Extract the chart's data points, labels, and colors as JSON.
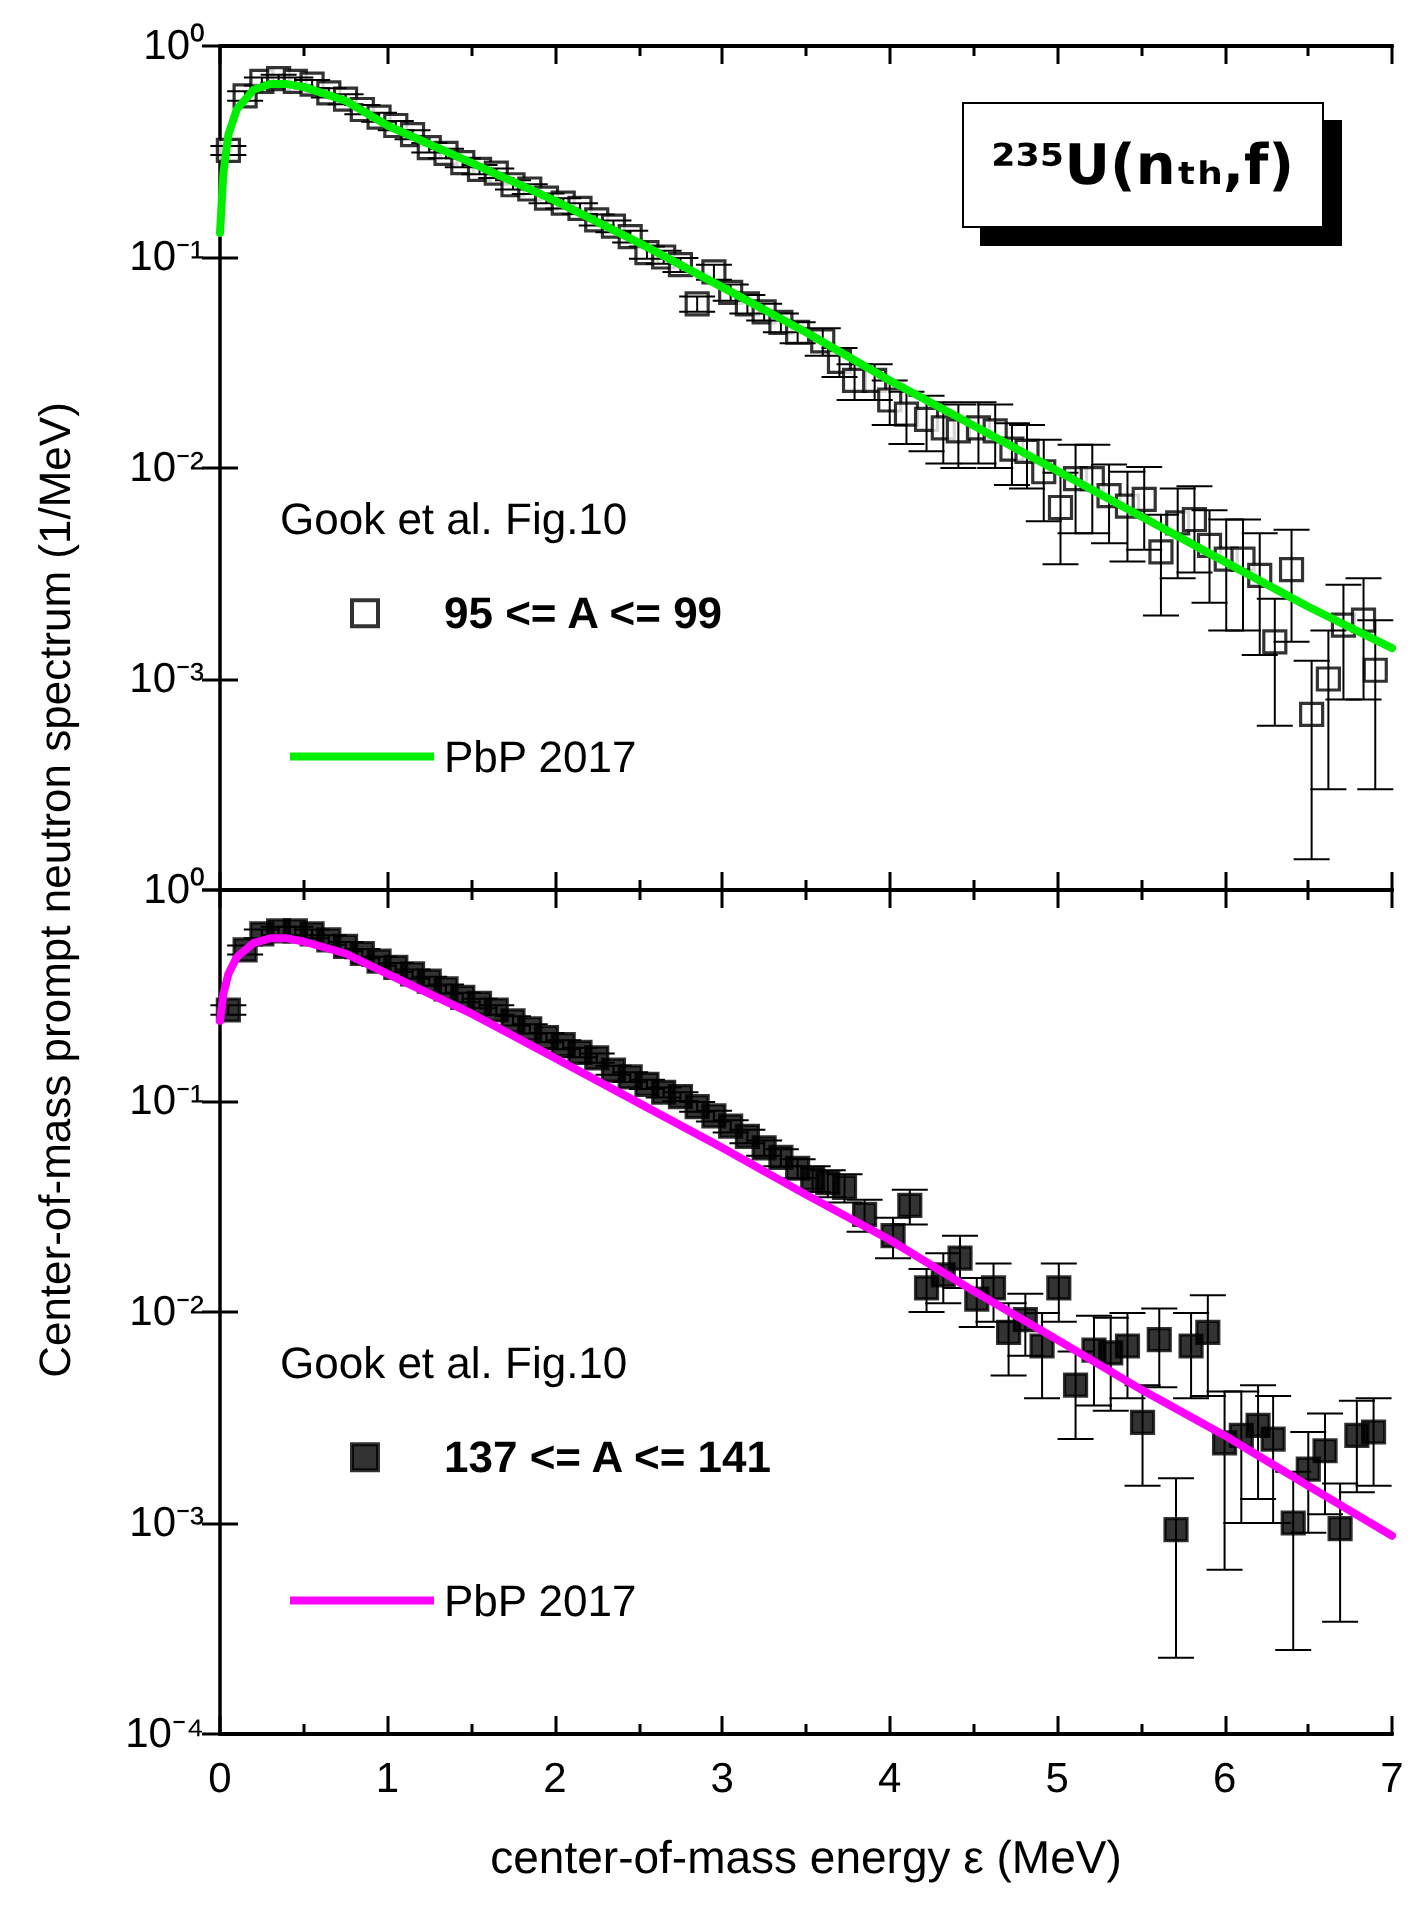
{
  "chart_data": [
    {
      "type": "scatter",
      "log": "y",
      "ylabel": "Center-of-mass prompt neutron spectrum (1/MeV)",
      "legend_title": "Gook et al. Fig.10",
      "legend": "left",
      "tick_labels": "y",
      "annotations": [
        "²³⁵U(nₜₕ,f)"
      ],
      "xlim": [
        0,
        7
      ],
      "xticks": [
        0,
        1,
        2,
        3,
        4,
        5,
        6,
        7
      ],
      "ylim": [
        0.0001,
        1
      ],
      "yticks": [
        {
          "value": 0.0001,
          "label": null
        },
        {
          "value": 0.001,
          "label": "10⁻³"
        },
        {
          "value": 0.01,
          "label": "10⁻²"
        },
        {
          "value": 0.1,
          "label": "10⁻¹"
        },
        {
          "value": 1,
          "label": "10⁰"
        }
      ],
      "series": [
        {
          "name": "95 <= A <= 99",
          "color": "#ffffff",
          "marker": "square",
          "x": [
            0.05,
            0.15,
            0.25,
            0.35,
            0.45,
            0.55,
            0.65,
            0.75,
            0.85,
            0.95,
            1.05,
            1.15,
            1.25,
            1.35,
            1.45,
            1.55,
            1.65,
            1.75,
            1.85,
            1.95,
            2.05,
            2.15,
            2.25,
            2.35,
            2.45,
            2.55,
            2.65,
            2.75,
            2.85,
            2.95,
            3.05,
            3.15,
            3.25,
            3.35,
            3.45,
            3.6,
            3.7,
            3.79,
            3.91,
            4.0,
            4.1,
            4.22,
            4.32,
            4.41,
            4.53,
            4.63,
            4.73,
            4.82,
            4.92,
            5.02,
            5.11,
            5.21,
            5.31,
            5.42,
            5.52,
            5.62,
            5.72,
            5.82,
            5.91,
            6.01,
            6.11,
            6.21,
            6.3,
            6.4,
            6.52,
            6.62,
            6.71,
            6.83,
            6.9
          ],
          "values": [
            0.32,
            0.58,
            0.68,
            0.7,
            0.68,
            0.66,
            0.6,
            0.56,
            0.5,
            0.46,
            0.42,
            0.38,
            0.33,
            0.31,
            0.28,
            0.26,
            0.25,
            0.22,
            0.21,
            0.19,
            0.18,
            0.17,
            0.15,
            0.14,
            0.125,
            0.105,
            0.1,
            0.092,
            0.06,
            0.085,
            0.068,
            0.06,
            0.055,
            0.049,
            0.044,
            0.04,
            0.032,
            0.026,
            0.026,
            0.021,
            0.018,
            0.017,
            0.0155,
            0.015,
            0.0155,
            0.015,
            0.0123,
            0.012,
            0.0096,
            0.0065,
            0.0089,
            0.0089,
            0.0074,
            0.0066,
            0.0071,
            0.004,
            0.0055,
            0.0057,
            0.0043,
            0.0037,
            0.0037,
            0.0031,
            0.0015,
            0.0033,
            0.00068,
            0.001,
            0.0018,
            0.0019,
            0.0011
          ],
          "errors": [
            0.016,
            0.03,
            0.03,
            0.03,
            0.03,
            0.03,
            0.03,
            0.03,
            0.025,
            0.023,
            0.021,
            0.019,
            0.017,
            0.016,
            0.014,
            0.013,
            0.013,
            0.011,
            0.011,
            0.01,
            0.01,
            0.01,
            0.009,
            0.009,
            0.008,
            0.007,
            0.007,
            0.007,
            0.005,
            0.007,
            0.006,
            0.006,
            0.005,
            0.005,
            0.005,
            0.006,
            0.005,
            0.005,
            0.005,
            0.005,
            0.005,
            0.005,
            0.005,
            0.005,
            0.005,
            0.005,
            0.004,
            0.004,
            0.004,
            0.003,
            0.004,
            0.004,
            0.003,
            0.003,
            0.003,
            0.002,
            0.0025,
            0.0025,
            0.002,
            0.002,
            0.002,
            0.0018,
            0.0009,
            0.0018,
            0.00054,
            0.0007,
            0.001,
            0.0011,
            0.0008
          ]
        },
        {
          "name": "PbP 2017",
          "type": "line",
          "color": "#00ee00",
          "line_style": "solid",
          "x": [
            0,
            0.02,
            0.05,
            0.1,
            0.2,
            0.3,
            0.4,
            0.5,
            0.75,
            1,
            1.5,
            2,
            2.5,
            3,
            3.5,
            4,
            4.5,
            5,
            5.5,
            6,
            6.5,
            7
          ],
          "values": [
            0.13,
            0.25,
            0.38,
            0.5,
            0.62,
            0.66,
            0.66,
            0.64,
            0.55,
            0.42,
            0.28,
            0.185,
            0.117,
            0.072,
            0.044,
            0.026,
            0.0159,
            0.0097,
            0.0059,
            0.0036,
            0.0022,
            0.0014
          ]
        }
      ]
    },
    {
      "type": "scatter",
      "log": "y",
      "xlabel": "center-of-mass energy ε (MeV)",
      "legend_title": "Gook et al. Fig.10",
      "legend": "left",
      "xlim": [
        0,
        7
      ],
      "xticks": [
        0,
        1,
        2,
        3,
        4,
        5,
        6,
        7
      ],
      "ylim": [
        0.0001,
        1
      ],
      "yticks": [
        {
          "value": 0.0001,
          "label": "10⁻⁴"
        },
        {
          "value": 0.001,
          "label": "10⁻³"
        },
        {
          "value": 0.01,
          "label": "10⁻²"
        },
        {
          "value": 0.1,
          "label": "10⁻¹"
        },
        {
          "value": 1,
          "label": "10⁰"
        }
      ],
      "series": [
        {
          "name": "137 <= A <= 141",
          "color": "#000000",
          "marker": "square",
          "x": [
            0.05,
            0.15,
            0.25,
            0.35,
            0.45,
            0.55,
            0.65,
            0.75,
            0.85,
            0.95,
            1.05,
            1.15,
            1.25,
            1.35,
            1.45,
            1.55,
            1.65,
            1.75,
            1.85,
            1.95,
            2.05,
            2.15,
            2.25,
            2.35,
            2.45,
            2.55,
            2.65,
            2.75,
            2.85,
            2.95,
            3.05,
            3.15,
            3.25,
            3.35,
            3.45,
            3.54,
            3.63,
            3.73,
            3.85,
            4.02,
            4.12,
            4.22,
            4.32,
            4.42,
            4.52,
            4.62,
            4.71,
            4.81,
            4.91,
            5.01,
            5.11,
            5.22,
            5.32,
            5.42,
            5.51,
            5.61,
            5.71,
            5.8,
            5.9,
            6.0,
            6.1,
            6.2,
            6.29,
            6.41,
            6.5,
            6.6,
            6.69,
            6.79,
            6.89
          ],
          "values": [
            0.27,
            0.52,
            0.62,
            0.64,
            0.64,
            0.62,
            0.58,
            0.54,
            0.5,
            0.46,
            0.43,
            0.4,
            0.37,
            0.34,
            0.31,
            0.29,
            0.27,
            0.24,
            0.22,
            0.2,
            0.185,
            0.17,
            0.16,
            0.14,
            0.13,
            0.12,
            0.11,
            0.105,
            0.094,
            0.085,
            0.076,
            0.068,
            0.06,
            0.054,
            0.048,
            0.043,
            0.041,
            0.039,
            0.029,
            0.023,
            0.032,
            0.013,
            0.015,
            0.018,
            0.0115,
            0.013,
            0.008,
            0.0092,
            0.0069,
            0.013,
            0.0045,
            0.0066,
            0.0064,
            0.0069,
            0.003,
            0.0074,
            0.00093,
            0.0069,
            0.008,
            0.0024,
            0.0026,
            0.0029,
            0.0025,
            0.001,
            0.0018,
            0.0022,
            0.00094,
            0.0026,
            0.0027
          ],
          "errors": [
            0.014,
            0.026,
            0.03,
            0.03,
            0.03,
            0.03,
            0.03,
            0.027,
            0.025,
            0.023,
            0.021,
            0.02,
            0.018,
            0.017,
            0.016,
            0.015,
            0.014,
            0.012,
            0.011,
            0.01,
            0.009,
            0.009,
            0.008,
            0.007,
            0.007,
            0.006,
            0.006,
            0.005,
            0.005,
            0.005,
            0.005,
            0.005,
            0.005,
            0.005,
            0.005,
            0.006,
            0.006,
            0.006,
            0.005,
            0.005,
            0.006,
            0.003,
            0.004,
            0.005,
            0.003,
            0.004,
            0.003,
            0.003,
            0.003,
            0.004,
            0.002,
            0.003,
            0.003,
            0.003,
            0.0015,
            0.003,
            0.0007,
            0.003,
            0.004,
            0.0018,
            0.0016,
            0.0016,
            0.0015,
            0.00075,
            0.0009,
            0.0011,
            0.0006,
            0.0012,
            0.0012
          ]
        },
        {
          "name": "PbP 2017",
          "type": "line",
          "color": "#ff00ff",
          "line_style": "solid",
          "x": [
            0,
            0.02,
            0.05,
            0.1,
            0.2,
            0.3,
            0.4,
            0.5,
            0.75,
            1,
            1.5,
            2,
            2.5,
            3,
            3.5,
            4,
            4.5,
            5,
            5.5,
            6,
            6.5,
            7
          ],
          "values": [
            0.24,
            0.32,
            0.4,
            0.48,
            0.56,
            0.59,
            0.59,
            0.57,
            0.5,
            0.4,
            0.26,
            0.16,
            0.098,
            0.06,
            0.036,
            0.022,
            0.0126,
            0.0074,
            0.0043,
            0.0026,
            0.0015,
            0.00087
          ]
        }
      ]
    }
  ]
}
